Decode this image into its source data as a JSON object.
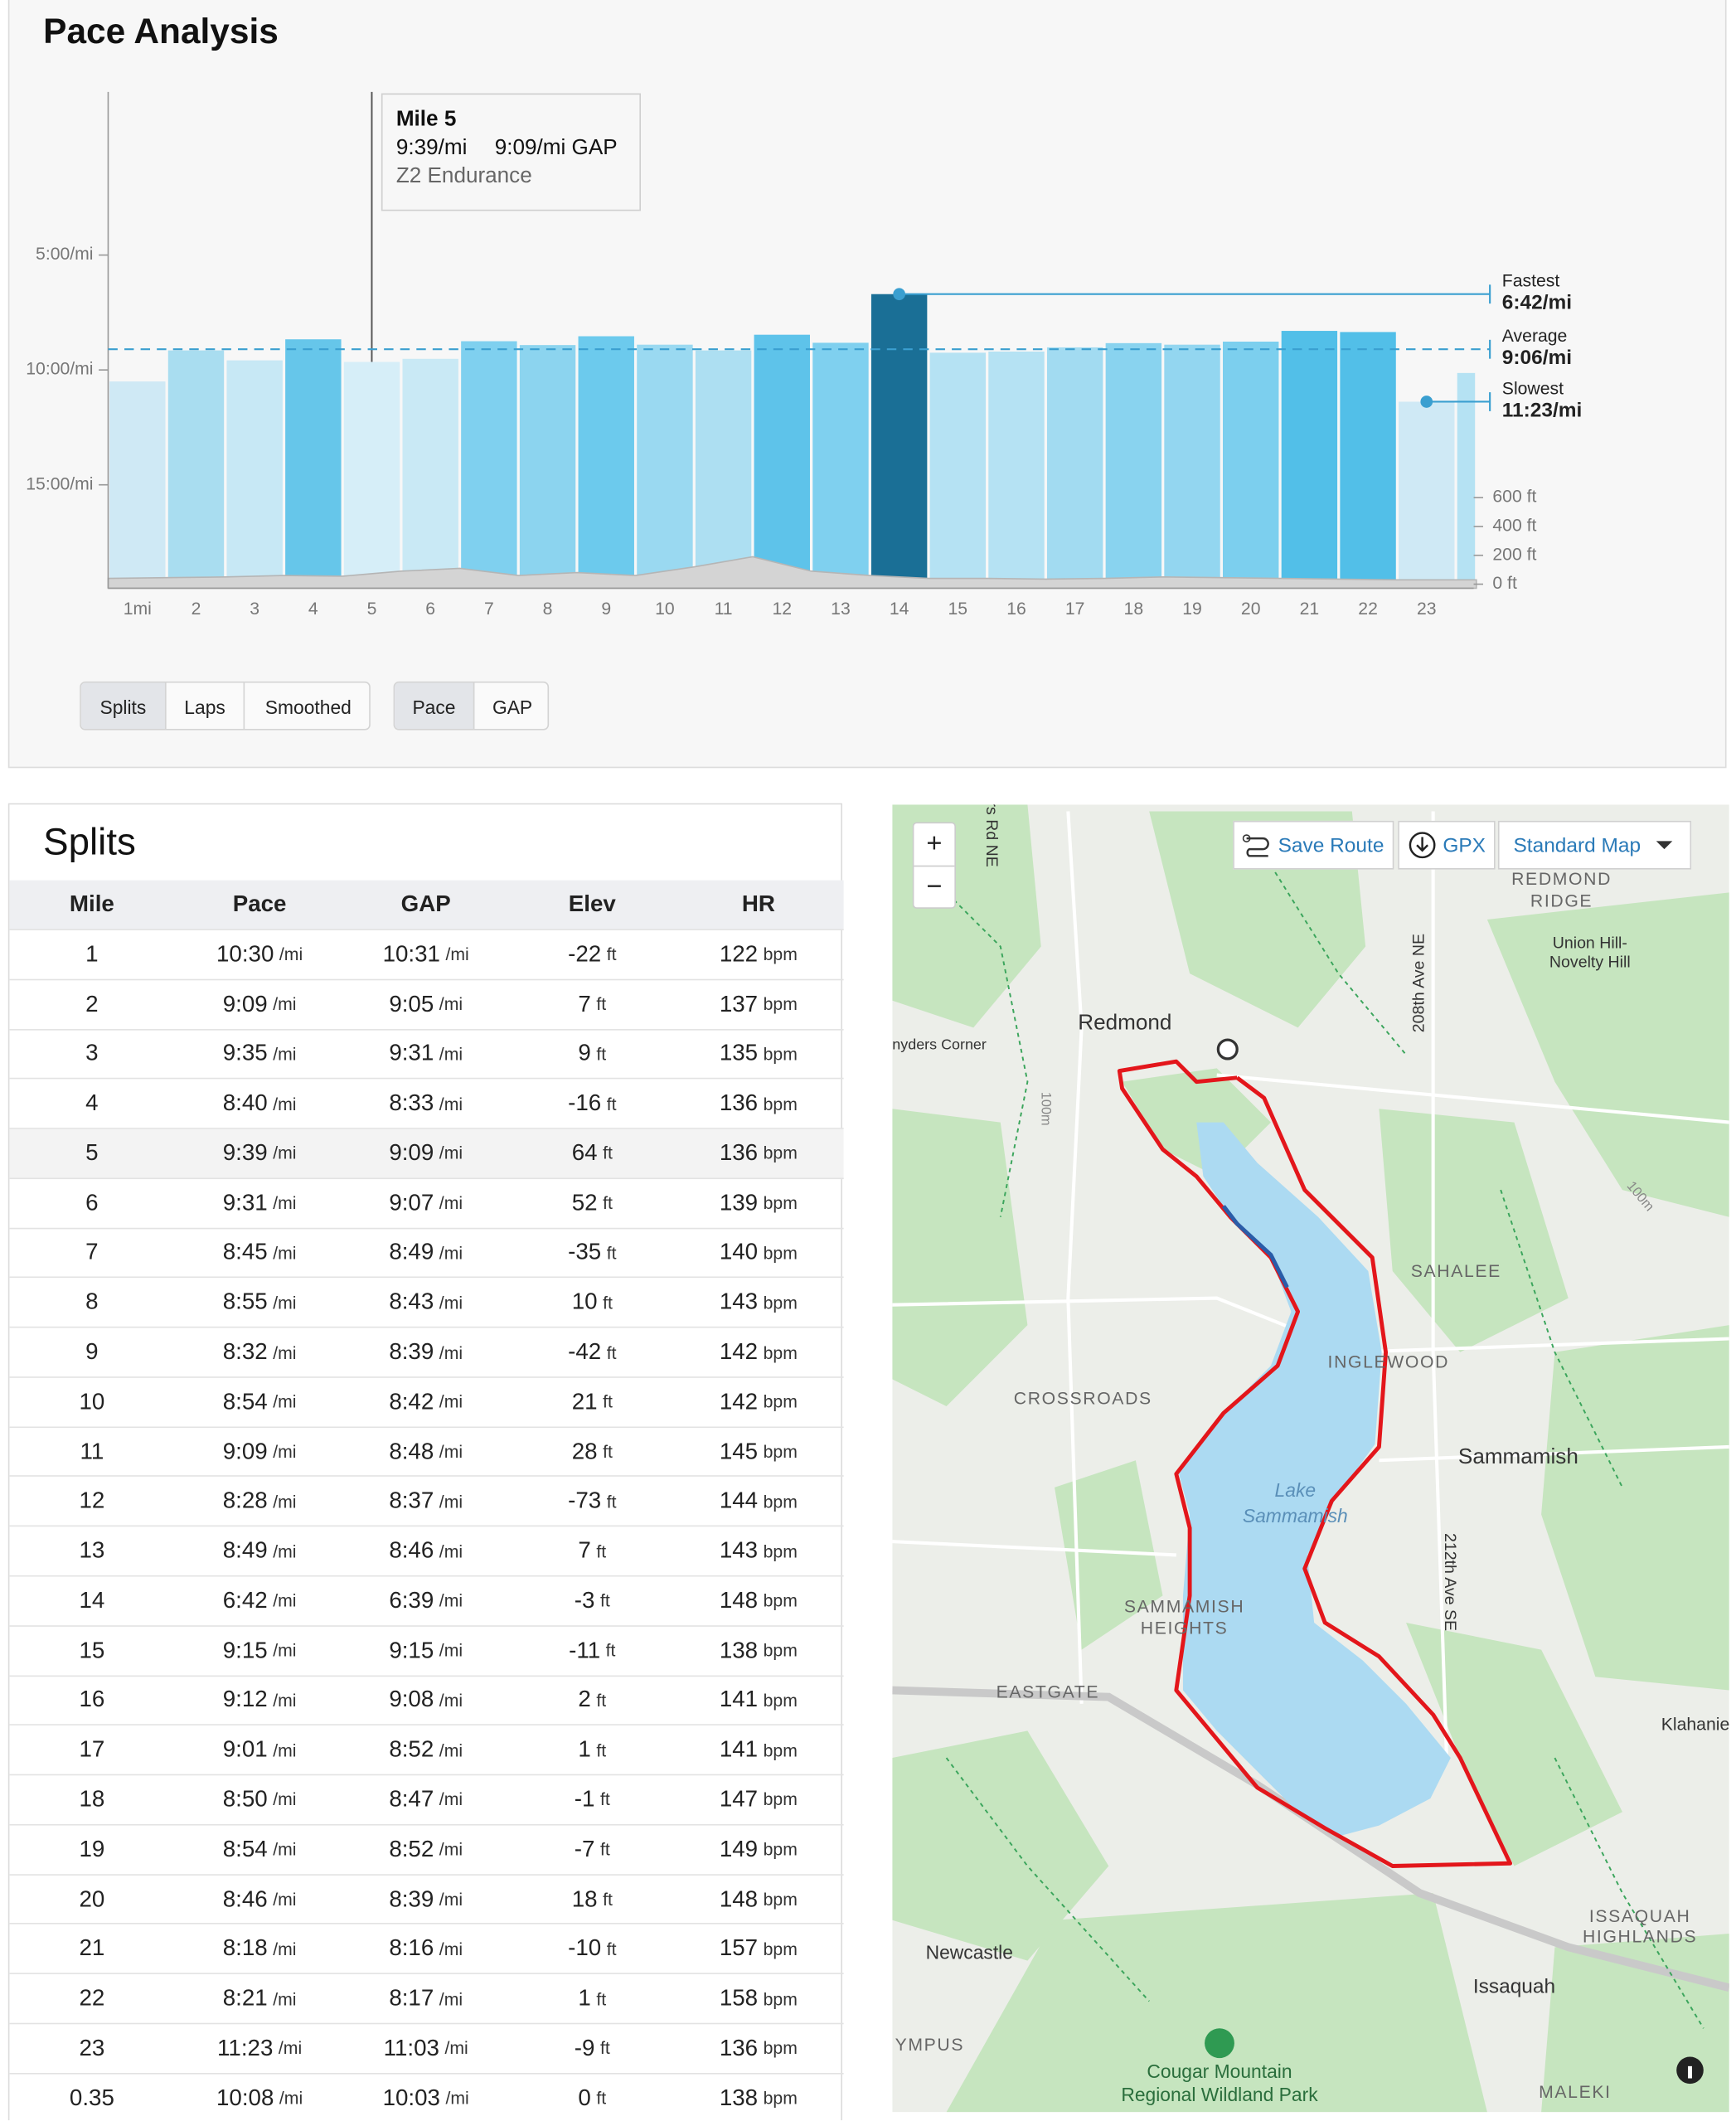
{
  "chart_data": {
    "type": "bar",
    "title": "Pace Analysis",
    "categories": [
      "1mi",
      "2",
      "3",
      "4",
      "5",
      "6",
      "7",
      "8",
      "9",
      "10",
      "11",
      "12",
      "13",
      "14",
      "15",
      "16",
      "17",
      "18",
      "19",
      "20",
      "21",
      "22",
      "23",
      null
    ],
    "values": [
      10.5,
      9.15,
      9.583,
      8.667,
      9.65,
      9.517,
      8.75,
      8.917,
      8.533,
      8.9,
      9.15,
      8.467,
      8.817,
      6.7,
      9.25,
      9.2,
      9.017,
      8.833,
      8.9,
      8.767,
      8.3,
      8.35,
      11.383,
      10.133
    ],
    "colors": [
      "#cfe9f5",
      "#a9ddf0",
      "#c7e8f5",
      "#66c6ea",
      "#d6eef8",
      "#c9e9f5",
      "#7fd0ef",
      "#8cd4ef",
      "#6ccaed",
      "#9ad9f1",
      "#addff2",
      "#5ec3ea",
      "#7fd0ef",
      "#1a6f96",
      "#b5e2f3",
      "#b5e2f3",
      "#a2dbf1",
      "#89d3ef",
      "#93d6f0",
      "#7ccfee",
      "#52bfe8",
      "#52bfe8",
      "#cfe9f5",
      "#b5e2f3"
    ],
    "xlim": [
      0,
      23.35
    ],
    "ylim": [
      19.5,
      -2.1
    ],
    "yticks": [
      {
        "value": 5,
        "label": "5:00/mi"
      },
      {
        "value": 10,
        "label": "10:00/mi"
      },
      {
        "value": 15,
        "label": "15:00/mi"
      }
    ],
    "y2lim": [
      -28,
      3412
    ],
    "y2ticks": [
      {
        "value": 0,
        "label": "0 ft"
      },
      {
        "value": 200,
        "label": "200 ft"
      },
      {
        "value": 400,
        "label": "400 ft"
      },
      {
        "value": 600,
        "label": "600 ft"
      }
    ],
    "elevation": {
      "axis": "y2",
      "color": "#d4d4d4",
      "x": [
        0,
        1,
        2,
        3,
        4,
        5,
        6,
        7,
        8,
        9,
        10,
        11,
        12,
        13,
        14,
        15,
        16,
        17,
        18,
        19,
        20,
        21,
        22,
        23,
        23.35
      ],
      "values": [
        40,
        45,
        50,
        60,
        55,
        90,
        110,
        60,
        80,
        60,
        120,
        190,
        90,
        60,
        40,
        40,
        35,
        40,
        50,
        45,
        40,
        35,
        30,
        30,
        30
      ]
    },
    "marker_color": "#3a9fd0",
    "markers": [
      {
        "label": "Fastest",
        "value": 6.7,
        "value_label": "6:42/mi",
        "dashed": false
      },
      {
        "label": "Average",
        "value": 9.1,
        "value_label": "9:06/mi",
        "dashed": true
      },
      {
        "label": "Slowest",
        "value": 11.383,
        "value_label": "11:23/mi",
        "dashed": false
      }
    ]
  },
  "tooltip": {
    "title": "Mile 5",
    "pace": "9:39/mi",
    "gap": "9:09/mi GAP",
    "zone": "Z2 Endurance"
  },
  "view_buttons": [
    "Splits",
    "Laps",
    "Smoothed"
  ],
  "metric_buttons": [
    "Pace",
    "GAP"
  ],
  "splits": {
    "title": "Splits",
    "columns": [
      {
        "label": "Mile"
      },
      {
        "label": "Pace",
        "unit": "/mi"
      },
      {
        "label": "GAP",
        "unit": "/mi"
      },
      {
        "label": "Elev",
        "unit": "ft"
      },
      {
        "label": "HR",
        "unit": "bpm"
      }
    ],
    "rows": [
      [
        "1",
        "10:30",
        "10:31",
        "-22",
        "122"
      ],
      [
        "2",
        "9:09",
        "9:05",
        "7",
        "137"
      ],
      [
        "3",
        "9:35",
        "9:31",
        "9",
        "135"
      ],
      [
        "4",
        "8:40",
        "8:33",
        "-16",
        "136"
      ],
      [
        "5",
        "9:39",
        "9:09",
        "64",
        "136"
      ],
      [
        "6",
        "9:31",
        "9:07",
        "52",
        "139"
      ],
      [
        "7",
        "8:45",
        "8:49",
        "-35",
        "140"
      ],
      [
        "8",
        "8:55",
        "8:43",
        "10",
        "143"
      ],
      [
        "9",
        "8:32",
        "8:39",
        "-42",
        "142"
      ],
      [
        "10",
        "8:54",
        "8:42",
        "21",
        "142"
      ],
      [
        "11",
        "9:09",
        "8:48",
        "28",
        "145"
      ],
      [
        "12",
        "8:28",
        "8:37",
        "-73",
        "144"
      ],
      [
        "13",
        "8:49",
        "8:46",
        "7",
        "143"
      ],
      [
        "14",
        "6:42",
        "6:39",
        "-3",
        "148"
      ],
      [
        "15",
        "9:15",
        "9:15",
        "-11",
        "138"
      ],
      [
        "16",
        "9:12",
        "9:08",
        "2",
        "141"
      ],
      [
        "17",
        "9:01",
        "8:52",
        "1",
        "141"
      ],
      [
        "18",
        "8:50",
        "8:47",
        "-1",
        "147"
      ],
      [
        "19",
        "8:54",
        "8:52",
        "-7",
        "149"
      ],
      [
        "20",
        "8:46",
        "8:39",
        "18",
        "148"
      ],
      [
        "21",
        "8:18",
        "8:16",
        "-10",
        "157"
      ],
      [
        "22",
        "8:21",
        "8:17",
        "1",
        "158"
      ],
      [
        "23",
        "11:23",
        "11:03",
        "-9",
        "136"
      ],
      [
        "0.35",
        "10:08",
        "10:03",
        "0",
        "138"
      ]
    ]
  },
  "map": {
    "controls": {
      "zoom_in": "+",
      "zoom_out": "−",
      "save_route": "Save Route",
      "gpx": "GPX",
      "map_style": "Standard Map"
    },
    "labels": [
      "Redmond",
      "nyders Corner",
      "REDMOND",
      "RIDGE",
      "Union Hill-",
      "Novelty Hill",
      "208th Ave NE",
      "SAHALEE",
      "INGLEWOOD",
      "CROSSROADS",
      "Sammamish",
      "Lake",
      "Sammamish",
      "212th Ave SE",
      "SAMMAMISH",
      "HEIGHTS",
      "EASTGATE",
      "Klahanie",
      "Newcastle",
      "Issaquah",
      "ISSAQUAH",
      "HIGHLANDS",
      "Cougar Mountain",
      "Regional Wildland Park",
      "YMPUS",
      "rs Rd NE",
      "100m",
      "100m",
      "MALEKI"
    ]
  }
}
